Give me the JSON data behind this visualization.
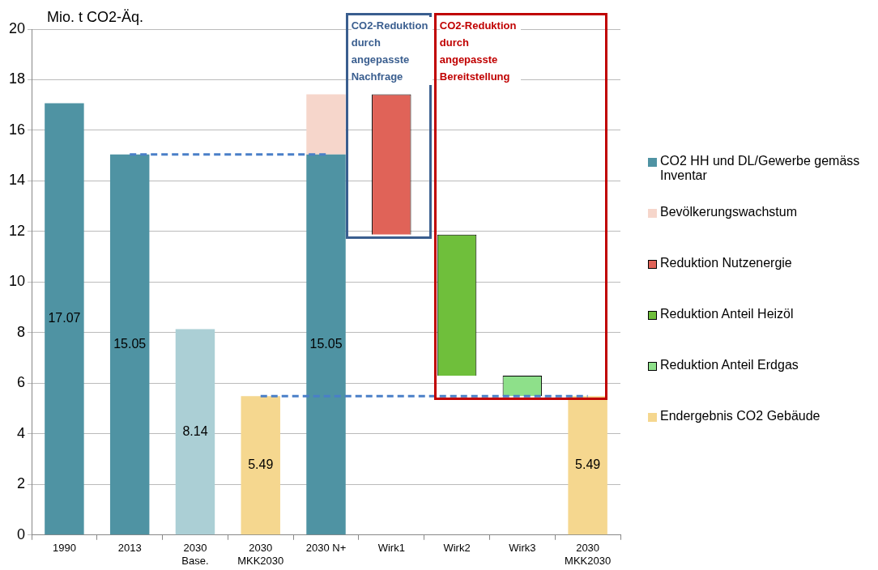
{
  "chart_data": {
    "type": "bar",
    "ylabel": "Mio. t CO2-Äq.",
    "categories": [
      "1990",
      "2013",
      "2030\nBase.",
      "2030\nMKK2030",
      "2030 N+",
      "Wirk1",
      "Wirk2",
      "Wirk3",
      "2030\nMKK2030"
    ],
    "series": [
      {
        "name": "CO2 HH und DL/Gewerbe gemäss Inventar",
        "color": "#4f93a3",
        "colors": [
          "#4f93a3",
          "#4f93a3",
          "#abcfd5",
          "#4f93a3",
          "#4f93a3",
          "#4f93a3",
          "#4f93a3",
          "#4f93a3",
          "#4f93a3"
        ],
        "values": [
          17.07,
          15.05,
          8.14,
          null,
          15.05,
          null,
          null,
          null,
          null
        ],
        "value_labels": [
          "17.07",
          "15.05",
          "8.14",
          null,
          "15.05",
          null,
          null,
          null,
          null
        ]
      },
      {
        "name": "Bevölkerungswachstum",
        "color": "#f6d6cb",
        "values": [
          null,
          null,
          null,
          null,
          2.37,
          null,
          null,
          null,
          null
        ],
        "base": [
          null,
          null,
          null,
          null,
          15.05,
          null,
          null,
          null,
          null
        ]
      },
      {
        "name": "Reduktion Nutzenergie",
        "color": "#e06358",
        "values": [
          null,
          null,
          null,
          null,
          null,
          5.54,
          null,
          null,
          null
        ],
        "base": [
          null,
          null,
          null,
          null,
          null,
          11.88,
          null,
          null,
          null
        ]
      },
      {
        "name": "Reduktion Anteil Heizöl",
        "color": "#6fbf3b",
        "values": [
          null,
          null,
          null,
          null,
          null,
          null,
          5.58,
          null,
          null
        ],
        "base": [
          null,
          null,
          null,
          null,
          null,
          null,
          6.3,
          null,
          null
        ]
      },
      {
        "name": "Reduktion Anteil Erdgas",
        "color": "#8ee08a",
        "values": [
          null,
          null,
          null,
          null,
          null,
          null,
          null,
          0.81,
          null
        ],
        "base": [
          null,
          null,
          null,
          null,
          null,
          null,
          null,
          5.49,
          null
        ]
      },
      {
        "name": "Endergebnis CO2 Gebäude",
        "color": "#f5d78f",
        "values": [
          null,
          null,
          null,
          5.49,
          null,
          null,
          null,
          null,
          5.49
        ],
        "value_labels": [
          null,
          null,
          null,
          "5.49",
          null,
          null,
          null,
          null,
          "5.49"
        ]
      },
      {
        "type": "line",
        "color": "#4a7fc8",
        "line_style": "dashed",
        "marker": "none",
        "values": [
          null,
          15.05,
          15.05,
          15.05,
          15.05,
          null,
          null,
          null,
          null
        ]
      },
      {
        "type": "line",
        "color": "#4a7fc8",
        "line_style": "dashed",
        "marker": "none",
        "values": [
          null,
          null,
          null,
          5.49,
          5.49,
          5.49,
          5.49,
          5.49,
          5.49
        ]
      }
    ],
    "ylim": [
      0,
      20
    ],
    "yticks": [
      0,
      2,
      4,
      6,
      8,
      10,
      12,
      14,
      16,
      18,
      20
    ],
    "grid": "y",
    "legend": "right",
    "annotations": [
      "CO2-Reduktion durch angepasste Nachfrage",
      "CO2-Reduktion durch angepasste Bereitstellung"
    ]
  }
}
